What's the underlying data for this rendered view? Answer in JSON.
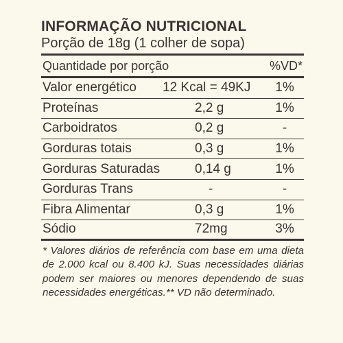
{
  "title": "INFORMAÇÃO NUTRICIONAL",
  "portion": "Porção de 18g (1 colher de sopa)",
  "header": {
    "label": "Quantidade por porção",
    "vd": "%VD*"
  },
  "rows": [
    {
      "name": "Valor energético",
      "amount": "12 Kcal = 49KJ",
      "vd": "1%"
    },
    {
      "name": "Proteínas",
      "amount": "2,2 g",
      "vd": "1%"
    },
    {
      "name": "Carboidratos",
      "amount": "0,2 g",
      "vd": "-"
    },
    {
      "name": "Gorduras totais",
      "amount": "0,3 g",
      "vd": "1%"
    },
    {
      "name": "Gorduras Saturadas",
      "amount": "0,14 g",
      "vd": "1%"
    },
    {
      "name": "Gorduras Trans",
      "amount": "-",
      "vd": "-"
    },
    {
      "name": "Fibra Alimentar",
      "amount": "0,3 g",
      "vd": "1%"
    },
    {
      "name": "Sódio",
      "amount": "72mg",
      "vd": "3%"
    }
  ],
  "footnote": "* Valores diários de referência com base em uma dieta de 2.000 kcal ou 8.400 kJ. Suas necessidades diárias podem ser maiores ou menores dependendo de suas necessidades energéticas.** VD não determinado."
}
